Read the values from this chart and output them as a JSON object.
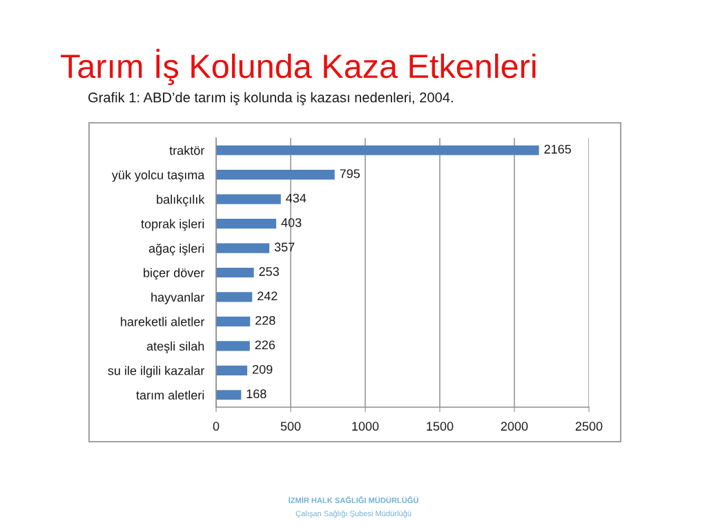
{
  "chart_data": {
    "type": "bar",
    "orientation": "horizontal",
    "title": "Tarım İş Kolunda Kaza Etkenleri",
    "subtitle": "Grafik 1: ABD’de tarım iş kolunda iş kazası nedenleri, 2004.",
    "categories": [
      "traktör",
      "yük yolcu taşıma",
      "balıkçılık",
      "toprak işleri",
      "ağaç işleri",
      "biçer döver",
      "hayvanlar",
      "hareketli aletler",
      "ateşli silah",
      "su ile ilgili kazalar",
      "tarım aletleri"
    ],
    "values": [
      2165,
      795,
      434,
      403,
      357,
      253,
      242,
      228,
      226,
      209,
      168
    ],
    "color": "#4f81bd",
    "xlim": [
      0,
      2500
    ],
    "xticks": [
      0,
      500,
      1000,
      1500,
      2000,
      2500
    ],
    "grid": "x",
    "data_labels": true,
    "annotations": [
      "İZMİR HALK SAĞLIĞI MÜDÜRLÜĞÜ",
      "Çalışan Sağlığı Şubesi Müdürlüğü"
    ]
  }
}
